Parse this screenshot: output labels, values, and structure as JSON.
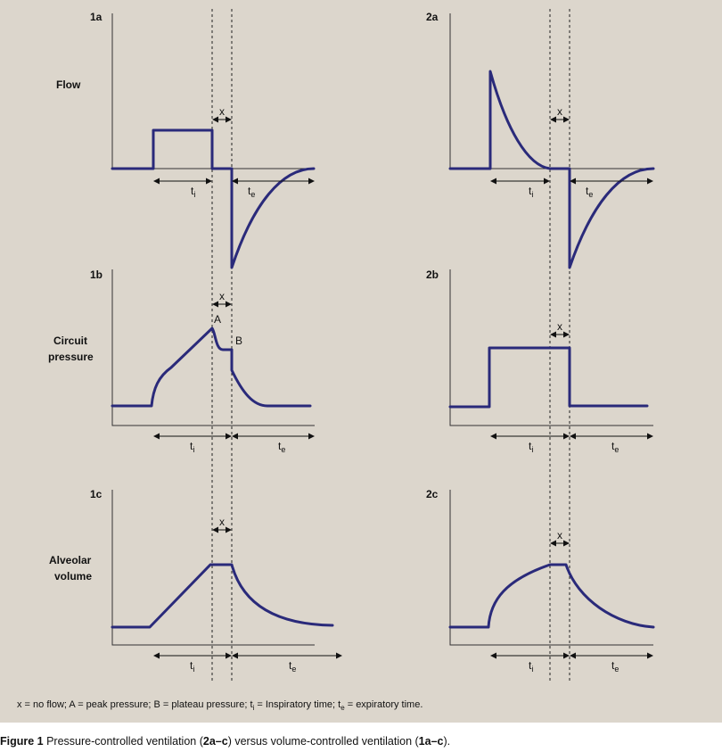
{
  "panels": {
    "p1a": "1a",
    "p2a": "2a",
    "p1b": "1b",
    "p2b": "2b",
    "p1c": "1c",
    "p2c": "2c"
  },
  "row_labels": {
    "flow": "Flow",
    "pressure_1": "Circuit",
    "pressure_2": "pressure",
    "volume_1": "Alveolar",
    "volume_2": "volume"
  },
  "markers": {
    "x": "x",
    "A": "A",
    "B": "B",
    "t": "t",
    "i": "i",
    "e": "e"
  },
  "legend": {
    "x_def": "x = no flow;",
    "a_def": "A = peak pressure;",
    "b_def": "B = plateau pressure;",
    "ti_def_pre": "t",
    "ti_def_sub": "i",
    "ti_def_post": " = Inspiratory time;",
    "te_def_pre": "t",
    "te_def_sub": "e",
    "te_def_post": " = expiratory time."
  },
  "caption": {
    "fig": "Figure 1",
    "text_1": " Pressure-controlled ventilation (",
    "range_a": "2a–c",
    "text_2": ") versus volume-controlled ventilation (",
    "range_b": "1a–c",
    "text_3": ")."
  },
  "colors": {
    "background": "#dcd6cc",
    "curve": "#2a2a7a",
    "axis": "#333333"
  }
}
